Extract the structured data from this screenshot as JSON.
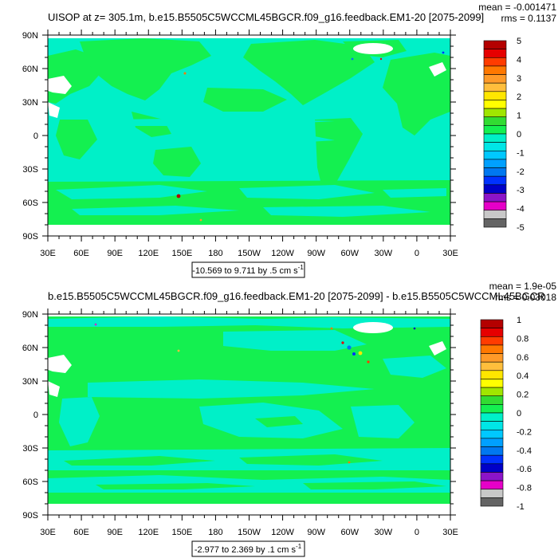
{
  "colors": {
    "ocean": "#00f0c8",
    "land": "#14f050",
    "missing": "#ffffff"
  },
  "chart_data": [
    {
      "type": "heatmap",
      "title": "UISOP at z= 305.1m, b.e15.B5505C5WCCML45BGCR.f09_g16.feedback.EM1-20 [2075-2099]",
      "stats": {
        "mean": "mean = -0.001471",
        "rms": "rms = 0.1137"
      },
      "x_ticks": [
        "30E",
        "60E",
        "90E",
        "120E",
        "150E",
        "180",
        "150W",
        "120W",
        "90W",
        "60W",
        "30W",
        "0",
        "30E"
      ],
      "y_ticks": [
        "90N",
        "60N",
        "30N",
        "0",
        "30S",
        "60S",
        "90S"
      ],
      "xlim": [
        30,
        390
      ],
      "ylim": [
        -90,
        90
      ],
      "colorbar_labels": [
        "5",
        "4",
        "3",
        "2",
        "1",
        "0",
        "-1",
        "-2",
        "-3",
        "-4",
        "-5"
      ],
      "colorbar_colors": [
        "#b40000",
        "#e60000",
        "#ff3c00",
        "#ff7800",
        "#ff9a28",
        "#ffbe3c",
        "#ffe600",
        "#ffff00",
        "#a0e600",
        "#32dc32",
        "#14f050",
        "#00f0c8",
        "#00e6e6",
        "#00c8ff",
        "#00a0ff",
        "#0078f0",
        "#0032ff",
        "#0000c8",
        "#8c14c8",
        "#e600c8",
        "#c8c8c8",
        "#646464"
      ],
      "range_text": "-10.569 to 9.711 by .5 cm s",
      "range_sup": "-1"
    },
    {
      "type": "heatmap",
      "title": "b.e15.B5505C5WCCML45BGCR.f09_g16.feedback.EM1-20 [2075-2099] - b.e15.B5505C5WCCML45BGCR",
      "stats": {
        "mean": "mean = 1.9e-05",
        "rms": "rms = 0.03018"
      },
      "x_ticks": [
        "30E",
        "60E",
        "90E",
        "120E",
        "150E",
        "180",
        "150W",
        "120W",
        "90W",
        "60W",
        "30W",
        "0",
        "30E"
      ],
      "y_ticks": [
        "90N",
        "60N",
        "30N",
        "0",
        "30S",
        "60S",
        "90S"
      ],
      "xlim": [
        30,
        390
      ],
      "ylim": [
        -90,
        90
      ],
      "colorbar_labels": [
        "1",
        "0.8",
        "0.6",
        "0.4",
        "0.2",
        "0",
        "-0.2",
        "-0.4",
        "-0.6",
        "-0.8",
        "-1"
      ],
      "colorbar_colors": [
        "#b40000",
        "#e60000",
        "#ff3c00",
        "#ff7800",
        "#ff9a28",
        "#ffbe3c",
        "#ffe600",
        "#ffff00",
        "#a0e600",
        "#32dc32",
        "#14f050",
        "#00f0c8",
        "#00e6e6",
        "#00c8ff",
        "#00a0ff",
        "#0078f0",
        "#0032ff",
        "#0000c8",
        "#8c14c8",
        "#e600c8",
        "#c8c8c8",
        "#646464"
      ],
      "range_text": "-2.977 to 2.369 by .1 cm s",
      "range_sup": "-1"
    }
  ]
}
